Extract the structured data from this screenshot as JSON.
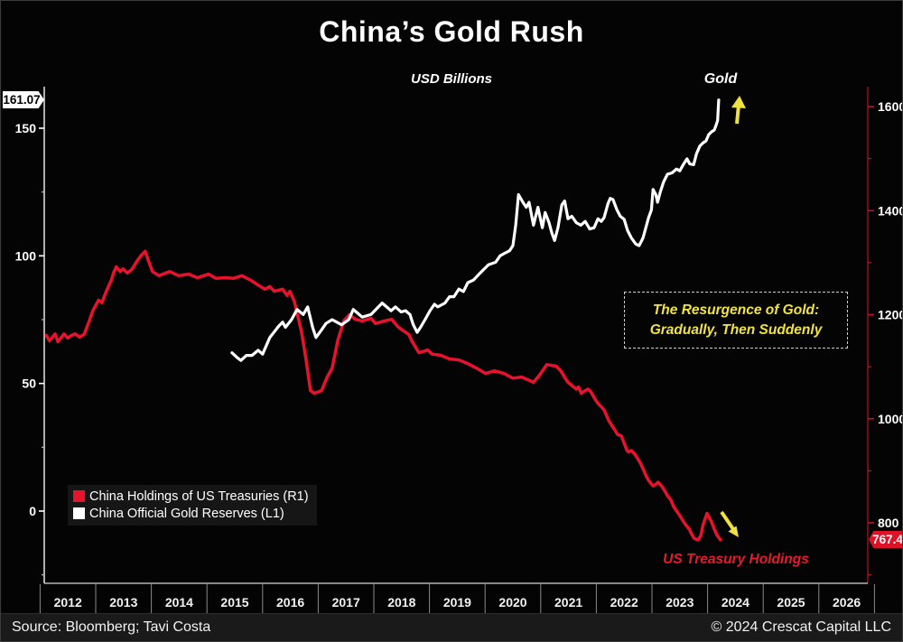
{
  "title": "China’s Gold Rush",
  "subtitle": "USD Billions",
  "legend": [
    {
      "label": "China Holdings of US Treasuries (R1)",
      "color": "#e8122d"
    },
    {
      "label": "China Official Gold Reserves (L1)",
      "color": "#ffffff"
    }
  ],
  "annotations": {
    "gold_label": "Gold",
    "treasury_label": "US Treasury Holdings",
    "callout_line1": "The Resurgence of Gold:",
    "callout_line2": "Gradually, Then Suddenly",
    "left_last_value": "161.07",
    "right_last_value": "767.4"
  },
  "footer": {
    "source": "Source: Bloomberg; Tavi Costa",
    "copyright": "© 2024 Crescat Capital LLC"
  },
  "colors": {
    "background": "#040404",
    "treasuries_line": "#e8122d",
    "gold_line": "#ffffff",
    "accent_yellow": "#f0e13c",
    "right_axis": "#8a1020",
    "left_axis": "#e8e8e8"
  },
  "chart_data": {
    "type": "line",
    "title": "China's Gold Rush",
    "units": "USD Billions",
    "x_years": [
      2012,
      2013,
      2014,
      2015,
      2016,
      2017,
      2018,
      2019,
      2020,
      2021,
      2022,
      2023,
      2024,
      2025,
      2026
    ],
    "left_axis": {
      "major_ticks": [
        0,
        50,
        100,
        150
      ],
      "minor_ticks": [
        -25,
        25,
        75,
        125
      ],
      "last_value": 161.07,
      "range_hint": [
        -28,
        195
      ]
    },
    "right_axis": {
      "major_ticks": [
        800,
        1000,
        1200,
        1400,
        1600
      ],
      "minor_ticks": [
        700,
        900,
        1100,
        1300,
        1500
      ],
      "last_value": 767.4,
      "range_hint": [
        684,
        1638
      ]
    },
    "legend_position": "bottom-left",
    "grid": false,
    "series": [
      {
        "name": "China Holdings of US Treasuries (R1)",
        "axis": "right",
        "color": "#e8122d",
        "points": [
          [
            2012.11,
            1160
          ],
          [
            2012.17,
            1150
          ],
          [
            2012.27,
            1163
          ],
          [
            2012.32,
            1148
          ],
          [
            2012.43,
            1163
          ],
          [
            2012.5,
            1155
          ],
          [
            2012.56,
            1160
          ],
          [
            2012.63,
            1163
          ],
          [
            2012.71,
            1157
          ],
          [
            2012.79,
            1162
          ],
          [
            2012.87,
            1184
          ],
          [
            2012.95,
            1208
          ],
          [
            2013.05,
            1228
          ],
          [
            2013.11,
            1223
          ],
          [
            2013.19,
            1245
          ],
          [
            2013.28,
            1266
          ],
          [
            2013.32,
            1280
          ],
          [
            2013.37,
            1292
          ],
          [
            2013.44,
            1283
          ],
          [
            2013.49,
            1288
          ],
          [
            2013.57,
            1280
          ],
          [
            2013.65,
            1287
          ],
          [
            2013.73,
            1301
          ],
          [
            2013.81,
            1313
          ],
          [
            2013.89,
            1322
          ],
          [
            2013.94,
            1306
          ],
          [
            2014.02,
            1283
          ],
          [
            2014.14,
            1275
          ],
          [
            2014.33,
            1283
          ],
          [
            2014.49,
            1275
          ],
          [
            2014.67,
            1278
          ],
          [
            2014.83,
            1271
          ],
          [
            2015.03,
            1278
          ],
          [
            2015.16,
            1270
          ],
          [
            2015.32,
            1271
          ],
          [
            2015.48,
            1270
          ],
          [
            2015.63,
            1275
          ],
          [
            2015.79,
            1266
          ],
          [
            2015.92,
            1257
          ],
          [
            2016.04,
            1249
          ],
          [
            2016.13,
            1254
          ],
          [
            2016.21,
            1245
          ],
          [
            2016.36,
            1249
          ],
          [
            2016.44,
            1237
          ],
          [
            2016.49,
            1245
          ],
          [
            2016.57,
            1226
          ],
          [
            2016.7,
            1167
          ],
          [
            2016.78,
            1115
          ],
          [
            2016.86,
            1054
          ],
          [
            2016.93,
            1049
          ],
          [
            2017.06,
            1054
          ],
          [
            2017.16,
            1080
          ],
          [
            2017.25,
            1097
          ],
          [
            2017.35,
            1150
          ],
          [
            2017.46,
            1188
          ],
          [
            2017.56,
            1200
          ],
          [
            2017.67,
            1191
          ],
          [
            2017.79,
            1188
          ],
          [
            2017.95,
            1193
          ],
          [
            2018.03,
            1183
          ],
          [
            2018.19,
            1188
          ],
          [
            2018.32,
            1191
          ],
          [
            2018.44,
            1176
          ],
          [
            2018.52,
            1170
          ],
          [
            2018.63,
            1162
          ],
          [
            2018.68,
            1150
          ],
          [
            2018.81,
            1127
          ],
          [
            2018.97,
            1132
          ],
          [
            2019.05,
            1124
          ],
          [
            2019.2,
            1122
          ],
          [
            2019.36,
            1115
          ],
          [
            2019.53,
            1113
          ],
          [
            2019.69,
            1106
          ],
          [
            2019.85,
            1097
          ],
          [
            2020.01,
            1087
          ],
          [
            2020.17,
            1092
          ],
          [
            2020.34,
            1087
          ],
          [
            2020.5,
            1078
          ],
          [
            2020.66,
            1080
          ],
          [
            2020.87,
            1070
          ],
          [
            2020.98,
            1084
          ],
          [
            2021.11,
            1104
          ],
          [
            2021.28,
            1101
          ],
          [
            2021.36,
            1092
          ],
          [
            2021.44,
            1078
          ],
          [
            2021.49,
            1070
          ],
          [
            2021.57,
            1063
          ],
          [
            2021.64,
            1057
          ],
          [
            2021.68,
            1061
          ],
          [
            2021.73,
            1049
          ],
          [
            2021.8,
            1054
          ],
          [
            2021.85,
            1057
          ],
          [
            2021.9,
            1052
          ],
          [
            2021.98,
            1037
          ],
          [
            2022.04,
            1028
          ],
          [
            2022.09,
            1023
          ],
          [
            2022.14,
            1017
          ],
          [
            2022.22,
            997
          ],
          [
            2022.29,
            985
          ],
          [
            2022.33,
            979
          ],
          [
            2022.38,
            970
          ],
          [
            2022.45,
            967
          ],
          [
            2022.5,
            953
          ],
          [
            2022.55,
            939
          ],
          [
            2022.58,
            936
          ],
          [
            2022.63,
            939
          ],
          [
            2022.69,
            932
          ],
          [
            2022.74,
            924
          ],
          [
            2022.79,
            915
          ],
          [
            2022.85,
            901
          ],
          [
            2022.9,
            889
          ],
          [
            2022.95,
            880
          ],
          [
            2023.02,
            871
          ],
          [
            2023.07,
            874
          ],
          [
            2023.11,
            878
          ],
          [
            2023.18,
            870
          ],
          [
            2023.23,
            861
          ],
          [
            2023.28,
            852
          ],
          [
            2023.34,
            844
          ],
          [
            2023.39,
            831
          ],
          [
            2023.44,
            823
          ],
          [
            2023.5,
            814
          ],
          [
            2023.55,
            805
          ],
          [
            2023.6,
            797
          ],
          [
            2023.67,
            788
          ],
          [
            2023.71,
            779
          ],
          [
            2023.76,
            770
          ],
          [
            2023.83,
            767
          ],
          [
            2023.88,
            776
          ],
          [
            2023.92,
            797
          ],
          [
            2023.99,
            818
          ],
          [
            2024.01,
            814
          ],
          [
            2024.07,
            802
          ],
          [
            2024.12,
            788
          ],
          [
            2024.17,
            776
          ],
          [
            2024.23,
            767.4
          ]
        ]
      },
      {
        "name": "China Official Gold Reserves (L1)",
        "axis": "left",
        "color": "#ffffff",
        "points": [
          [
            2015.45,
            62
          ],
          [
            2015.55,
            60
          ],
          [
            2015.61,
            59
          ],
          [
            2015.71,
            61
          ],
          [
            2015.81,
            61
          ],
          [
            2015.92,
            63
          ],
          [
            2016.0,
            61.5
          ],
          [
            2016.13,
            68
          ],
          [
            2016.29,
            72.5
          ],
          [
            2016.36,
            74
          ],
          [
            2016.41,
            72
          ],
          [
            2016.52,
            75
          ],
          [
            2016.62,
            79
          ],
          [
            2016.73,
            77
          ],
          [
            2016.81,
            80
          ],
          [
            2016.9,
            72
          ],
          [
            2016.96,
            68
          ],
          [
            2017.06,
            71
          ],
          [
            2017.14,
            73.5
          ],
          [
            2017.25,
            75
          ],
          [
            2017.42,
            73
          ],
          [
            2017.55,
            75
          ],
          [
            2017.63,
            79
          ],
          [
            2017.71,
            77.5
          ],
          [
            2017.79,
            76
          ],
          [
            2017.95,
            77
          ],
          [
            2018.06,
            79.5
          ],
          [
            2018.15,
            81.5
          ],
          [
            2018.23,
            80
          ],
          [
            2018.31,
            78.5
          ],
          [
            2018.39,
            80
          ],
          [
            2018.49,
            78
          ],
          [
            2018.57,
            78.5
          ],
          [
            2018.65,
            77
          ],
          [
            2018.71,
            73
          ],
          [
            2018.78,
            70
          ],
          [
            2018.84,
            72
          ],
          [
            2018.92,
            75
          ],
          [
            2019.01,
            78.5
          ],
          [
            2019.09,
            81
          ],
          [
            2019.15,
            80
          ],
          [
            2019.28,
            81.5
          ],
          [
            2019.36,
            84
          ],
          [
            2019.44,
            84
          ],
          [
            2019.53,
            87
          ],
          [
            2019.61,
            86
          ],
          [
            2019.69,
            89.5
          ],
          [
            2019.79,
            90.5
          ],
          [
            2019.9,
            93
          ],
          [
            2020.06,
            96.5
          ],
          [
            2020.19,
            97.5
          ],
          [
            2020.27,
            100
          ],
          [
            2020.35,
            101
          ],
          [
            2020.44,
            102
          ],
          [
            2020.5,
            104
          ],
          [
            2020.55,
            112
          ],
          [
            2020.6,
            124
          ],
          [
            2020.68,
            121
          ],
          [
            2020.74,
            119
          ],
          [
            2020.79,
            121
          ],
          [
            2020.87,
            112
          ],
          [
            2020.95,
            119
          ],
          [
            2021.03,
            111
          ],
          [
            2021.08,
            117
          ],
          [
            2021.15,
            113
          ],
          [
            2021.2,
            109
          ],
          [
            2021.25,
            106
          ],
          [
            2021.31,
            111
          ],
          [
            2021.38,
            120
          ],
          [
            2021.43,
            121.5
          ],
          [
            2021.49,
            114.5
          ],
          [
            2021.56,
            115.5
          ],
          [
            2021.64,
            113
          ],
          [
            2021.72,
            112
          ],
          [
            2021.8,
            113.5
          ],
          [
            2021.88,
            110.5
          ],
          [
            2021.96,
            111
          ],
          [
            2022.03,
            114.5
          ],
          [
            2022.09,
            113.5
          ],
          [
            2022.14,
            115
          ],
          [
            2022.21,
            120.5
          ],
          [
            2022.25,
            122.5
          ],
          [
            2022.3,
            122
          ],
          [
            2022.37,
            118
          ],
          [
            2022.43,
            115.5
          ],
          [
            2022.5,
            114.3
          ],
          [
            2022.56,
            110
          ],
          [
            2022.63,
            107
          ],
          [
            2022.71,
            104.6
          ],
          [
            2022.77,
            104
          ],
          [
            2022.84,
            107
          ],
          [
            2022.89,
            111
          ],
          [
            2022.94,
            115
          ],
          [
            2022.99,
            118
          ],
          [
            2023.02,
            126
          ],
          [
            2023.07,
            124
          ],
          [
            2023.1,
            121
          ],
          [
            2023.15,
            125
          ],
          [
            2023.21,
            129
          ],
          [
            2023.28,
            132
          ],
          [
            2023.36,
            132.5
          ],
          [
            2023.44,
            134
          ],
          [
            2023.5,
            133.3
          ],
          [
            2023.57,
            136
          ],
          [
            2023.63,
            138
          ],
          [
            2023.68,
            136
          ],
          [
            2023.75,
            135.7
          ],
          [
            2023.8,
            140
          ],
          [
            2023.86,
            143
          ],
          [
            2023.92,
            144.3
          ],
          [
            2023.97,
            145
          ],
          [
            2024.02,
            147.5
          ],
          [
            2024.07,
            148.6
          ],
          [
            2024.12,
            149.3
          ],
          [
            2024.15,
            151
          ],
          [
            2024.18,
            153
          ],
          [
            2024.2,
            161.07
          ]
        ]
      }
    ]
  }
}
